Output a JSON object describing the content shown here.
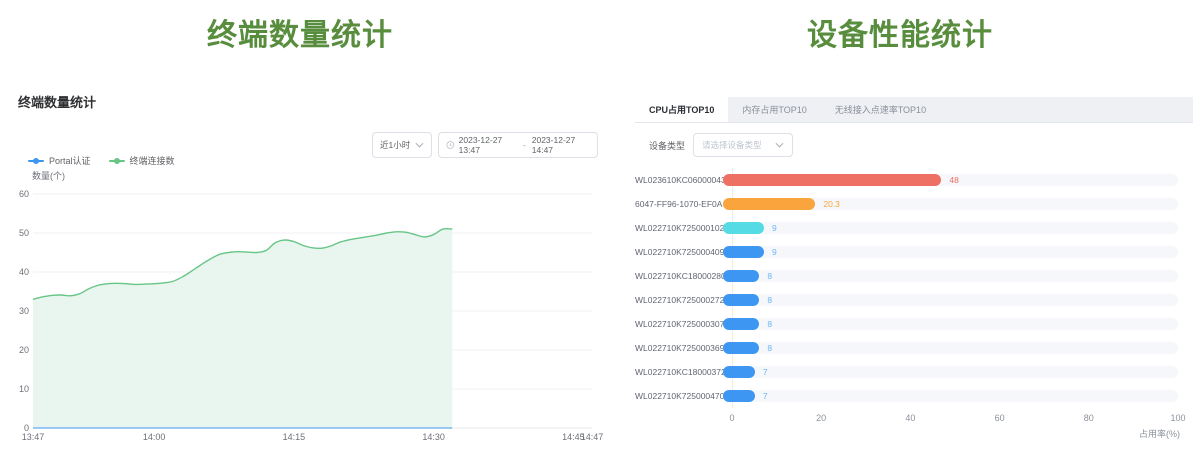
{
  "left": {
    "big_title": "终端数量统计",
    "panel_title": "终端数量统计",
    "controls": {
      "range_label": "近1小时",
      "start_time": "2023-12-27 13:47",
      "separator": "-",
      "end_time": "2023-12-27 14:47"
    },
    "legend": [
      {
        "label": "Portal认证",
        "color": "#3e96f3"
      },
      {
        "label": "终端连接数",
        "color": "#67c586"
      }
    ],
    "chart_data": {
      "type": "area",
      "title": "终端数量统计",
      "ylabel": "数量(个)",
      "xlabel": "",
      "ylim": [
        0,
        60
      ],
      "yticks": [
        0,
        10,
        20,
        30,
        40,
        50,
        60
      ],
      "x_total_minutes": 60,
      "xticks": [
        {
          "label": "13:47",
          "minute": 0
        },
        {
          "label": "14:00",
          "minute": 13
        },
        {
          "label": "14:15",
          "minute": 28
        },
        {
          "label": "14:30",
          "minute": 43
        },
        {
          "label": "14:45",
          "minute": 58
        },
        {
          "label": "14:47",
          "minute": 60
        }
      ],
      "grid": true,
      "legend_position": "top-left",
      "interval_minutes": 1,
      "series": [
        {
          "name": "Portal认证",
          "color": "#3e96f3",
          "values": [
            0,
            0,
            0,
            0,
            0,
            0,
            0,
            0,
            0,
            0,
            0,
            0,
            0,
            0,
            0,
            0,
            0,
            0,
            0,
            0,
            0,
            0,
            0,
            0,
            0,
            0,
            0,
            0,
            0,
            0,
            0,
            0,
            0,
            0,
            0,
            0,
            0,
            0,
            0,
            0,
            0,
            0,
            0,
            0,
            0,
            0
          ]
        },
        {
          "name": "终端连接数",
          "color": "#67c586",
          "area_fill": "#e9f6ef",
          "values": [
            33,
            33.6,
            34,
            34.1,
            33.9,
            34.4,
            35.7,
            36.6,
            37,
            37.1,
            37,
            36.8,
            36.9,
            37,
            37.2,
            37.6,
            38.7,
            40.2,
            41.8,
            43.3,
            44.5,
            45,
            45.2,
            45.1,
            45,
            45.5,
            47.5,
            48.2,
            47.8,
            46.8,
            46.2,
            46.1,
            46.7,
            47.7,
            48.3,
            48.7,
            49.1,
            49.5,
            50,
            50.3,
            50.2,
            49.6,
            49,
            49.6,
            51,
            51
          ]
        }
      ]
    }
  },
  "right": {
    "big_title": "设备性能统计",
    "tabs": [
      {
        "label": "CPU占用TOP10",
        "active": true
      },
      {
        "label": "内存占用TOP10",
        "active": false
      },
      {
        "label": "无线接入点速率TOP10",
        "active": false
      }
    ],
    "filter": {
      "label": "设备类型",
      "placeholder": "请选择设备类型"
    },
    "chart_data": {
      "type": "bar",
      "orientation": "horizontal",
      "xlabel": "占用率(%)",
      "xlim": [
        0,
        100
      ],
      "xticks": [
        0,
        20,
        40,
        60,
        80,
        100
      ],
      "categories": [
        "WL023610KC06000043",
        "6047-FF96-1070-EF0A",
        "WL022710K725000102",
        "WL022710K725000409",
        "WL022710KC18000280",
        "WL022710K725000272",
        "WL022710K725000307",
        "WL022710K725000369",
        "WL022710KC18000372",
        "WL022710K725000470"
      ],
      "values": [
        48,
        20.3,
        9,
        9,
        8,
        8,
        8,
        8,
        7,
        7
      ],
      "bar_colors": [
        "#ee6f64",
        "#f9a43d",
        "#54dbe3",
        "#3e96f3",
        "#3e96f3",
        "#3e96f3",
        "#3e96f3",
        "#3e96f3",
        "#3e96f3",
        "#3e96f3"
      ],
      "value_label_colors": [
        "#ee6f64",
        "#f9a43d",
        "#6cb6f7",
        "#6cb6f7",
        "#6cb6f7",
        "#6cb6f7",
        "#6cb6f7",
        "#6cb6f7",
        "#6cb6f7",
        "#6cb6f7"
      ]
    }
  }
}
